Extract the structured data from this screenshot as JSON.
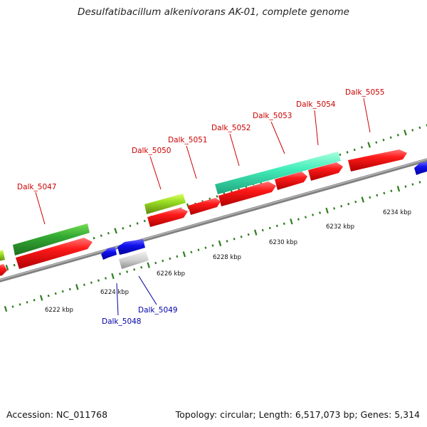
{
  "title": "Desulfatibacillum alkenivorans AK-01, complete genome",
  "footer": {
    "accession": "Accession: NC_011768",
    "topology": "Topology: circular; Length: 6,517,073 bp; Genes: 5,314"
  },
  "colors": {
    "backbone": "#8c8c8c",
    "tick": "#2e7d1e",
    "forward_label": "#cc0000",
    "reverse_label": "#0000aa",
    "red_gene": "#ee1111",
    "green_gene": "#33aa33",
    "lime_gene": "#99dd22",
    "cyan_gene": "#33ddaa",
    "blue_gene": "#1111dd",
    "grey_gene": "#c8c8c8"
  },
  "scale_labels": [
    "6222 kbp",
    "6224 kbp",
    "6226 kbp",
    "6228 kbp",
    "6230 kbp",
    "6232 kbp",
    "6234 kbp"
  ],
  "gene_labels": [
    {
      "text": "Dalk_5047",
      "strand": "forward"
    },
    {
      "text": "Dalk_5050",
      "strand": "forward"
    },
    {
      "text": "Dalk_5051",
      "strand": "forward"
    },
    {
      "text": "Dalk_5052",
      "strand": "forward"
    },
    {
      "text": "Dalk_5053",
      "strand": "forward"
    },
    {
      "text": "Dalk_5054",
      "strand": "forward"
    },
    {
      "text": "Dalk_5055",
      "strand": "forward"
    },
    {
      "text": "Dalk_5048",
      "strand": "reverse"
    },
    {
      "text": "Dalk_5049",
      "strand": "reverse"
    }
  ]
}
